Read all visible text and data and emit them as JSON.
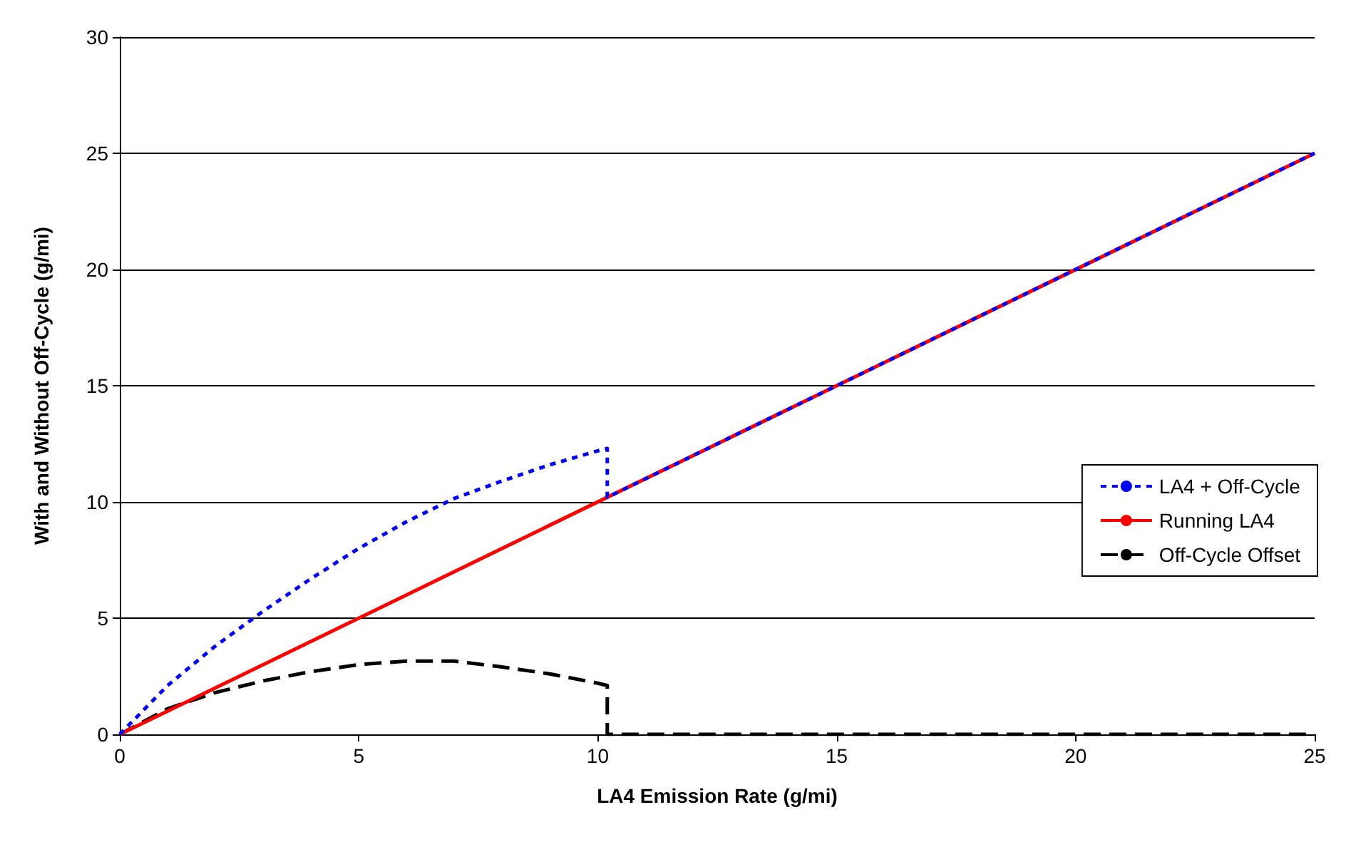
{
  "chart_data": {
    "type": "line",
    "xlabel": "LA4 Emission Rate (g/mi)",
    "ylabel": "With and Without Off-Cycle (g/mi)",
    "xlim": [
      0,
      25
    ],
    "xticks": [
      0,
      5,
      10,
      15,
      20,
      25
    ],
    "ylim": [
      0,
      30
    ],
    "yticks": [
      0,
      5,
      10,
      15,
      20,
      25,
      30
    ],
    "grid": "y",
    "legend": "right",
    "marker": "none",
    "series": [
      {
        "name": "LA4 + Off-Cycle",
        "color": "#0000ff",
        "line_style": "dotted",
        "x": [
          0,
          1,
          2,
          3,
          4,
          5,
          6,
          7,
          8,
          9,
          10,
          10.2,
          10.2,
          25
        ],
        "values": [
          0,
          2.1,
          3.8,
          5.3,
          6.7,
          8.0,
          9.15,
          10.15,
          10.9,
          11.6,
          12.2,
          12.3,
          10.2,
          25
        ]
      },
      {
        "name": "Running LA4",
        "color": "#ff0000",
        "line_style": "solid",
        "x": [
          0,
          25
        ],
        "values": [
          0,
          25
        ]
      },
      {
        "name": "Off-Cycle Offset",
        "color": "#000000",
        "line_style": "dashed",
        "x": [
          0,
          1,
          2,
          3,
          4,
          5,
          6,
          7,
          8,
          9,
          10,
          10.2,
          10.2,
          25
        ],
        "values": [
          0,
          1.1,
          1.8,
          2.3,
          2.7,
          3.0,
          3.15,
          3.15,
          2.9,
          2.6,
          2.2,
          2.1,
          0,
          0
        ]
      }
    ]
  }
}
